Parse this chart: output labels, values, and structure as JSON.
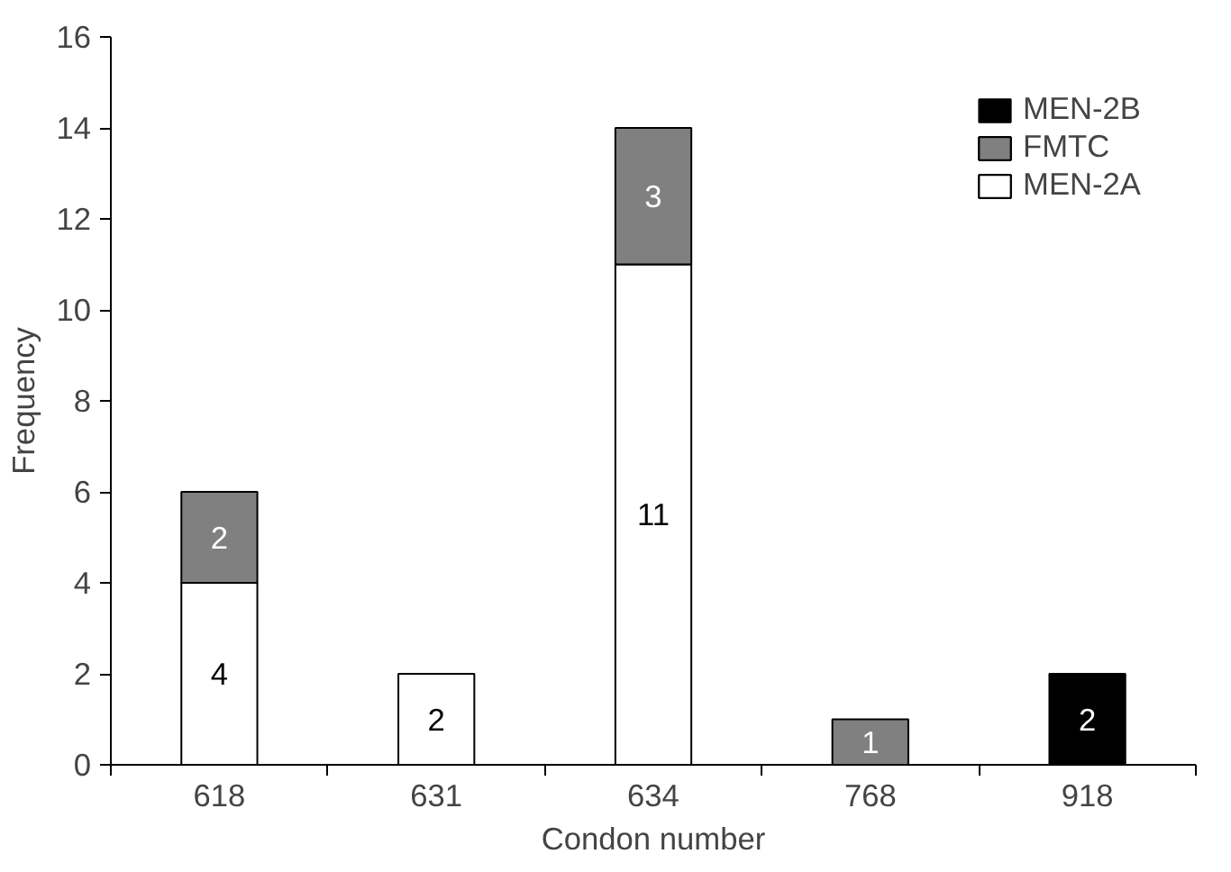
{
  "chart_data": {
    "type": "bar",
    "stacked": true,
    "xlabel": "Condon number",
    "ylabel": "Frequency",
    "categories": [
      "618",
      "631",
      "634",
      "768",
      "918"
    ],
    "series": [
      {
        "name": "MEN-2A",
        "color": "#ffffff",
        "values": [
          4,
          2,
          11,
          null,
          null
        ]
      },
      {
        "name": "FMTC",
        "color": "#808080",
        "values": [
          2,
          null,
          3,
          1,
          null
        ]
      },
      {
        "name": "MEN-2B",
        "color": "#000000",
        "values": [
          null,
          null,
          null,
          null,
          2
        ]
      }
    ],
    "ylim": [
      0,
      16
    ],
    "yticks": [
      0,
      2,
      4,
      6,
      8,
      10,
      12,
      14,
      16
    ],
    "data_labels": true,
    "legend": "top right",
    "grid": false
  }
}
